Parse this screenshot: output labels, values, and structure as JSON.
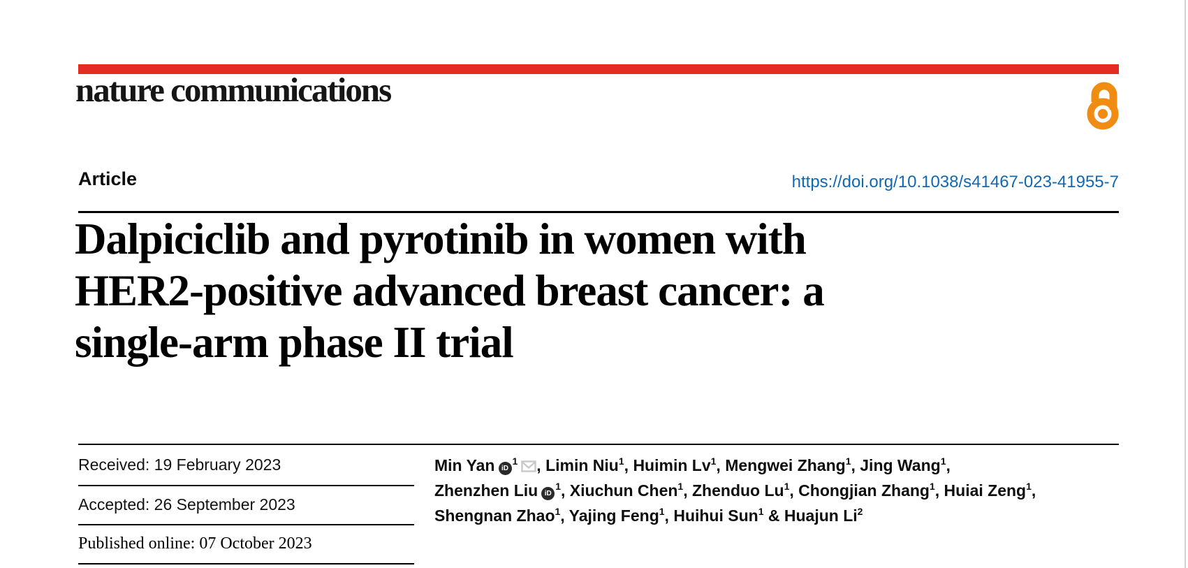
{
  "brand": {
    "journal_name": "nature communications",
    "bar_color": "#e32d22",
    "open_access_color": "#f08c12"
  },
  "article_header": {
    "type_label": "Article",
    "doi_link": "https://doi.org/10.1038/s41467-023-41955-7",
    "doi_color": "#1268b1"
  },
  "title": {
    "full": "Dalpiciclib and pyrotinib in women with HER2-positive advanced breast cancer: a single-arm phase II trial",
    "lines": [
      "Dalpiciclib and pyrotinib in women with",
      "HER2-positive advanced breast cancer: a",
      "single-arm phase II trial"
    ]
  },
  "history": {
    "received": "Received: 19 February 2023",
    "accepted": "Accepted: 26 September 2023",
    "published": "Published online: 07 October 2023"
  },
  "authors": {
    "lines": [
      {
        "items": [
          {
            "name": "Min Yan",
            "sup": "1",
            "orcid": true,
            "email": true,
            "sep": ", "
          },
          {
            "name": "Limin Niu",
            "sup": "1",
            "sep": ", "
          },
          {
            "name": "Huimin Lv",
            "sup": "1",
            "sep": ", "
          },
          {
            "name": "Mengwei Zhang",
            "sup": "1",
            "sep": ", "
          },
          {
            "name": "Jing Wang",
            "sup": "1",
            "sep": ","
          }
        ]
      },
      {
        "items": [
          {
            "name": "Zhenzhen Liu",
            "sup": "1",
            "orcid": true,
            "sep": ", "
          },
          {
            "name": "Xiuchun Chen",
            "sup": "1",
            "sep": ", "
          },
          {
            "name": "Zhenduo Lu",
            "sup": "1",
            "sep": ", "
          },
          {
            "name": "Chongjian Zhang",
            "sup": "1",
            "sep": ", "
          },
          {
            "name": "Huiai Zeng",
            "sup": "1",
            "sep": ","
          }
        ]
      },
      {
        "items": [
          {
            "name": "Shengnan Zhao",
            "sup": "1",
            "sep": ", "
          },
          {
            "name": "Yajing Feng",
            "sup": "1",
            "sep": ", "
          },
          {
            "name": "Huihui Sun",
            "sup": "1",
            "sep": " & "
          },
          {
            "name": "Huajun Li",
            "sup": "2",
            "sep": ""
          }
        ]
      }
    ]
  },
  "icons": {
    "orcid_glyph": "iD",
    "open_access": "open-lock-icon",
    "email": "envelope-icon"
  }
}
